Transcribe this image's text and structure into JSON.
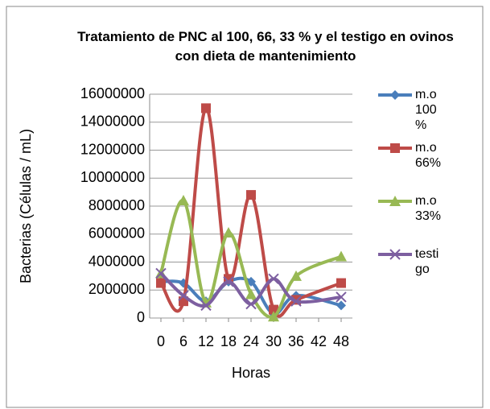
{
  "chart_data": {
    "type": "line",
    "title": "Tratamiento de PNC al 100, 66, 33 % y el testigo en ovinos con dieta de mantenimiento",
    "x_label": "Horas",
    "y_label": "Bacterias (Células / mL)",
    "x": [
      0,
      6,
      12,
      18,
      24,
      30,
      36,
      48
    ],
    "xlim": [
      -3,
      51
    ],
    "xticks": [
      0,
      6,
      12,
      18,
      24,
      30,
      36,
      42,
      48
    ],
    "ylim": [
      0,
      16000000
    ],
    "yticks": [
      0,
      2000000,
      4000000,
      6000000,
      8000000,
      10000000,
      12000000,
      14000000,
      16000000
    ],
    "grid": true,
    "legend": "right",
    "series": [
      {
        "name": "m.o 100 %",
        "color": "#4a7ebb",
        "values": [
          2600000,
          2500000,
          1200000,
          2600000,
          2600000,
          300000,
          1600000,
          900000
        ]
      },
      {
        "name": "m.o 66%",
        "color": "#be4b48",
        "values": [
          2500000,
          1200000,
          15000000,
          2800000,
          8800000,
          600000,
          1300000,
          2500000
        ]
      },
      {
        "name": "m.o 33%",
        "color": "#98b954",
        "values": [
          3200000,
          8400000,
          1100000,
          6100000,
          1700000,
          100000,
          3000000,
          4400000
        ]
      },
      {
        "name": "testigo",
        "color": "#7d5fa0",
        "values": [
          3200000,
          1600000,
          900000,
          2600000,
          1000000,
          2800000,
          1200000,
          1500000
        ]
      }
    ]
  }
}
